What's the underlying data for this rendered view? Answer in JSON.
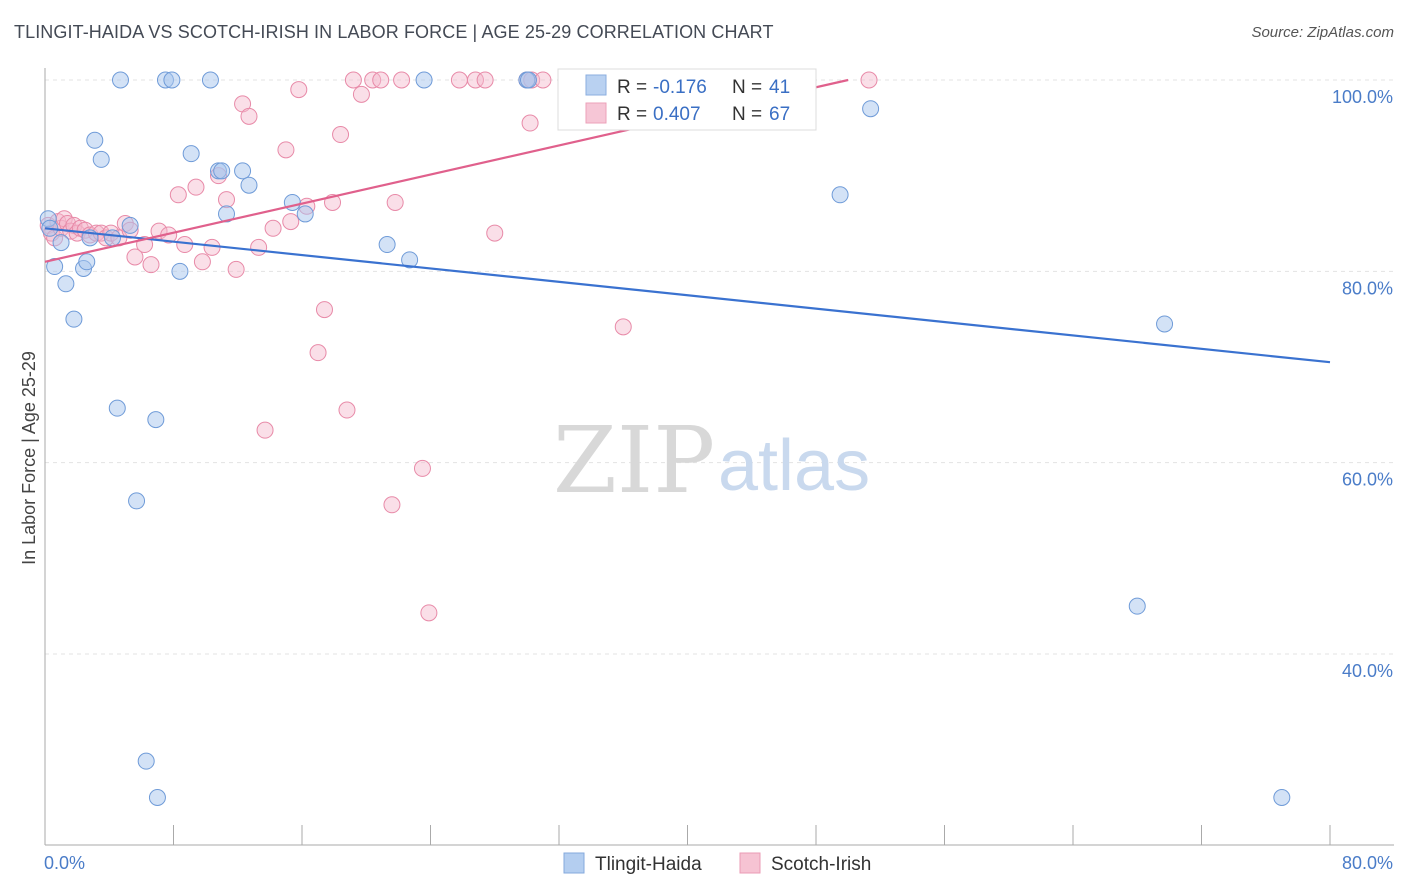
{
  "title": "TLINGIT-HAIDA VS SCOTCH-IRISH IN LABOR FORCE | AGE 25-29 CORRELATION CHART",
  "source": "Source: ZipAtlas.com",
  "watermark": {
    "zip": "ZIP",
    "atlas": "atlas"
  },
  "colors": {
    "blue_fill": "#a8c6ee",
    "blue_stroke": "#6f9bd8",
    "blue_line": "#3a72d0",
    "pink_fill": "#f5b9cc",
    "pink_stroke": "#e88aa8",
    "pink_line": "#e0608c",
    "grid": "#e3e3e3",
    "tick_text": "#4a7cc8"
  },
  "legend": {
    "rows": [
      {
        "r_label": "R =",
        "r_value": "-0.176",
        "n_label": "N =",
        "n_value": "41"
      },
      {
        "r_label": "R =",
        "r_value": "0.407",
        "n_label": "N =",
        "n_value": "67"
      }
    ]
  },
  "bottom_legend": [
    "Tlingit-Haida",
    "Scotch-Irish"
  ],
  "chart_data": {
    "type": "scatter",
    "title": "TLINGIT-HAIDA VS SCOTCH-IRISH IN LABOR FORCE | AGE 25-29 CORRELATION CHART",
    "xlabel": "",
    "ylabel": "In Labor Force | Age 25-29",
    "xlim": [
      0,
      0.8
    ],
    "ylim": [
      0.23,
      1.01
    ],
    "x_tick_labels": [
      "0.0%",
      "80.0%"
    ],
    "y_tick_labels": [
      "100.0%",
      "80.0%",
      "60.0%",
      "40.0%"
    ],
    "y_ticks": [
      1.0,
      0.8,
      0.6,
      0.4
    ],
    "grid": true,
    "legend_position": "top-center",
    "series": [
      {
        "name": "Tlingit-Haida",
        "color": "#a8c6ee",
        "r": -0.176,
        "n": 41,
        "trend": [
          [
            0.0,
            0.845
          ],
          [
            0.8,
            0.705
          ]
        ],
        "points": [
          [
            0.002,
            0.855
          ],
          [
            0.003,
            0.845
          ],
          [
            0.006,
            0.805
          ],
          [
            0.01,
            0.83
          ],
          [
            0.013,
            0.787
          ],
          [
            0.018,
            0.75
          ],
          [
            0.024,
            0.803
          ],
          [
            0.026,
            0.81
          ],
          [
            0.031,
            0.937
          ],
          [
            0.035,
            0.917
          ],
          [
            0.042,
            0.835
          ],
          [
            0.045,
            0.657
          ],
          [
            0.047,
            1.0
          ],
          [
            0.053,
            0.848
          ],
          [
            0.057,
            0.56
          ],
          [
            0.063,
            0.288
          ],
          [
            0.069,
            0.645
          ],
          [
            0.07,
            0.25
          ],
          [
            0.075,
            1.0
          ],
          [
            0.079,
            1.0
          ],
          [
            0.084,
            0.8
          ],
          [
            0.091,
            0.923
          ],
          [
            0.103,
            1.0
          ],
          [
            0.108,
            0.905
          ],
          [
            0.11,
            0.905
          ],
          [
            0.113,
            0.86
          ],
          [
            0.123,
            0.905
          ],
          [
            0.127,
            0.89
          ],
          [
            0.154,
            0.872
          ],
          [
            0.162,
            0.86
          ],
          [
            0.213,
            0.828
          ],
          [
            0.227,
            0.812
          ],
          [
            0.236,
            1.0
          ],
          [
            0.3,
            1.0
          ],
          [
            0.301,
            1.0
          ],
          [
            0.495,
            0.88
          ],
          [
            0.514,
            0.97
          ],
          [
            0.68,
            0.45
          ],
          [
            0.697,
            0.745
          ],
          [
            0.77,
            0.25
          ],
          [
            0.028,
            0.835
          ]
        ]
      },
      {
        "name": "Scotch-Irish",
        "color": "#f5b9cc",
        "r": 0.407,
        "n": 67,
        "trend": [
          [
            0.0,
            0.81
          ],
          [
            0.5,
            1.0
          ]
        ],
        "points": [
          [
            0.002,
            0.848
          ],
          [
            0.004,
            0.84
          ],
          [
            0.006,
            0.835
          ],
          [
            0.008,
            0.852
          ],
          [
            0.01,
            0.845
          ],
          [
            0.012,
            0.855
          ],
          [
            0.014,
            0.85
          ],
          [
            0.016,
            0.842
          ],
          [
            0.018,
            0.848
          ],
          [
            0.02,
            0.84
          ],
          [
            0.022,
            0.845
          ],
          [
            0.025,
            0.843
          ],
          [
            0.028,
            0.838
          ],
          [
            0.032,
            0.84
          ],
          [
            0.035,
            0.84
          ],
          [
            0.038,
            0.835
          ],
          [
            0.041,
            0.84
          ],
          [
            0.046,
            0.835
          ],
          [
            0.05,
            0.85
          ],
          [
            0.053,
            0.843
          ],
          [
            0.056,
            0.815
          ],
          [
            0.062,
            0.828
          ],
          [
            0.066,
            0.807
          ],
          [
            0.071,
            0.842
          ],
          [
            0.077,
            0.838
          ],
          [
            0.083,
            0.88
          ],
          [
            0.087,
            0.828
          ],
          [
            0.094,
            0.888
          ],
          [
            0.098,
            0.81
          ],
          [
            0.104,
            0.825
          ],
          [
            0.108,
            0.9
          ],
          [
            0.113,
            0.875
          ],
          [
            0.119,
            0.802
          ],
          [
            0.123,
            0.975
          ],
          [
            0.127,
            0.962
          ],
          [
            0.133,
            0.825
          ],
          [
            0.137,
            0.634
          ],
          [
            0.142,
            0.845
          ],
          [
            0.15,
            0.927
          ],
          [
            0.153,
            0.852
          ],
          [
            0.158,
            0.99
          ],
          [
            0.163,
            0.868
          ],
          [
            0.17,
            0.715
          ],
          [
            0.174,
            0.76
          ],
          [
            0.179,
            0.872
          ],
          [
            0.184,
            0.943
          ],
          [
            0.188,
            0.655
          ],
          [
            0.192,
            1.0
          ],
          [
            0.197,
            0.985
          ],
          [
            0.204,
            1.0
          ],
          [
            0.209,
            1.0
          ],
          [
            0.216,
            0.556
          ],
          [
            0.218,
            0.872
          ],
          [
            0.222,
            1.0
          ],
          [
            0.235,
            0.594
          ],
          [
            0.239,
            0.443
          ],
          [
            0.258,
            1.0
          ],
          [
            0.268,
            1.0
          ],
          [
            0.274,
            1.0
          ],
          [
            0.28,
            0.84
          ],
          [
            0.3,
            1.0
          ],
          [
            0.302,
            0.955
          ],
          [
            0.303,
            1.0
          ],
          [
            0.31,
            1.0
          ],
          [
            0.36,
            0.742
          ],
          [
            0.372,
            1.0
          ],
          [
            0.513,
            1.0
          ]
        ]
      }
    ]
  }
}
